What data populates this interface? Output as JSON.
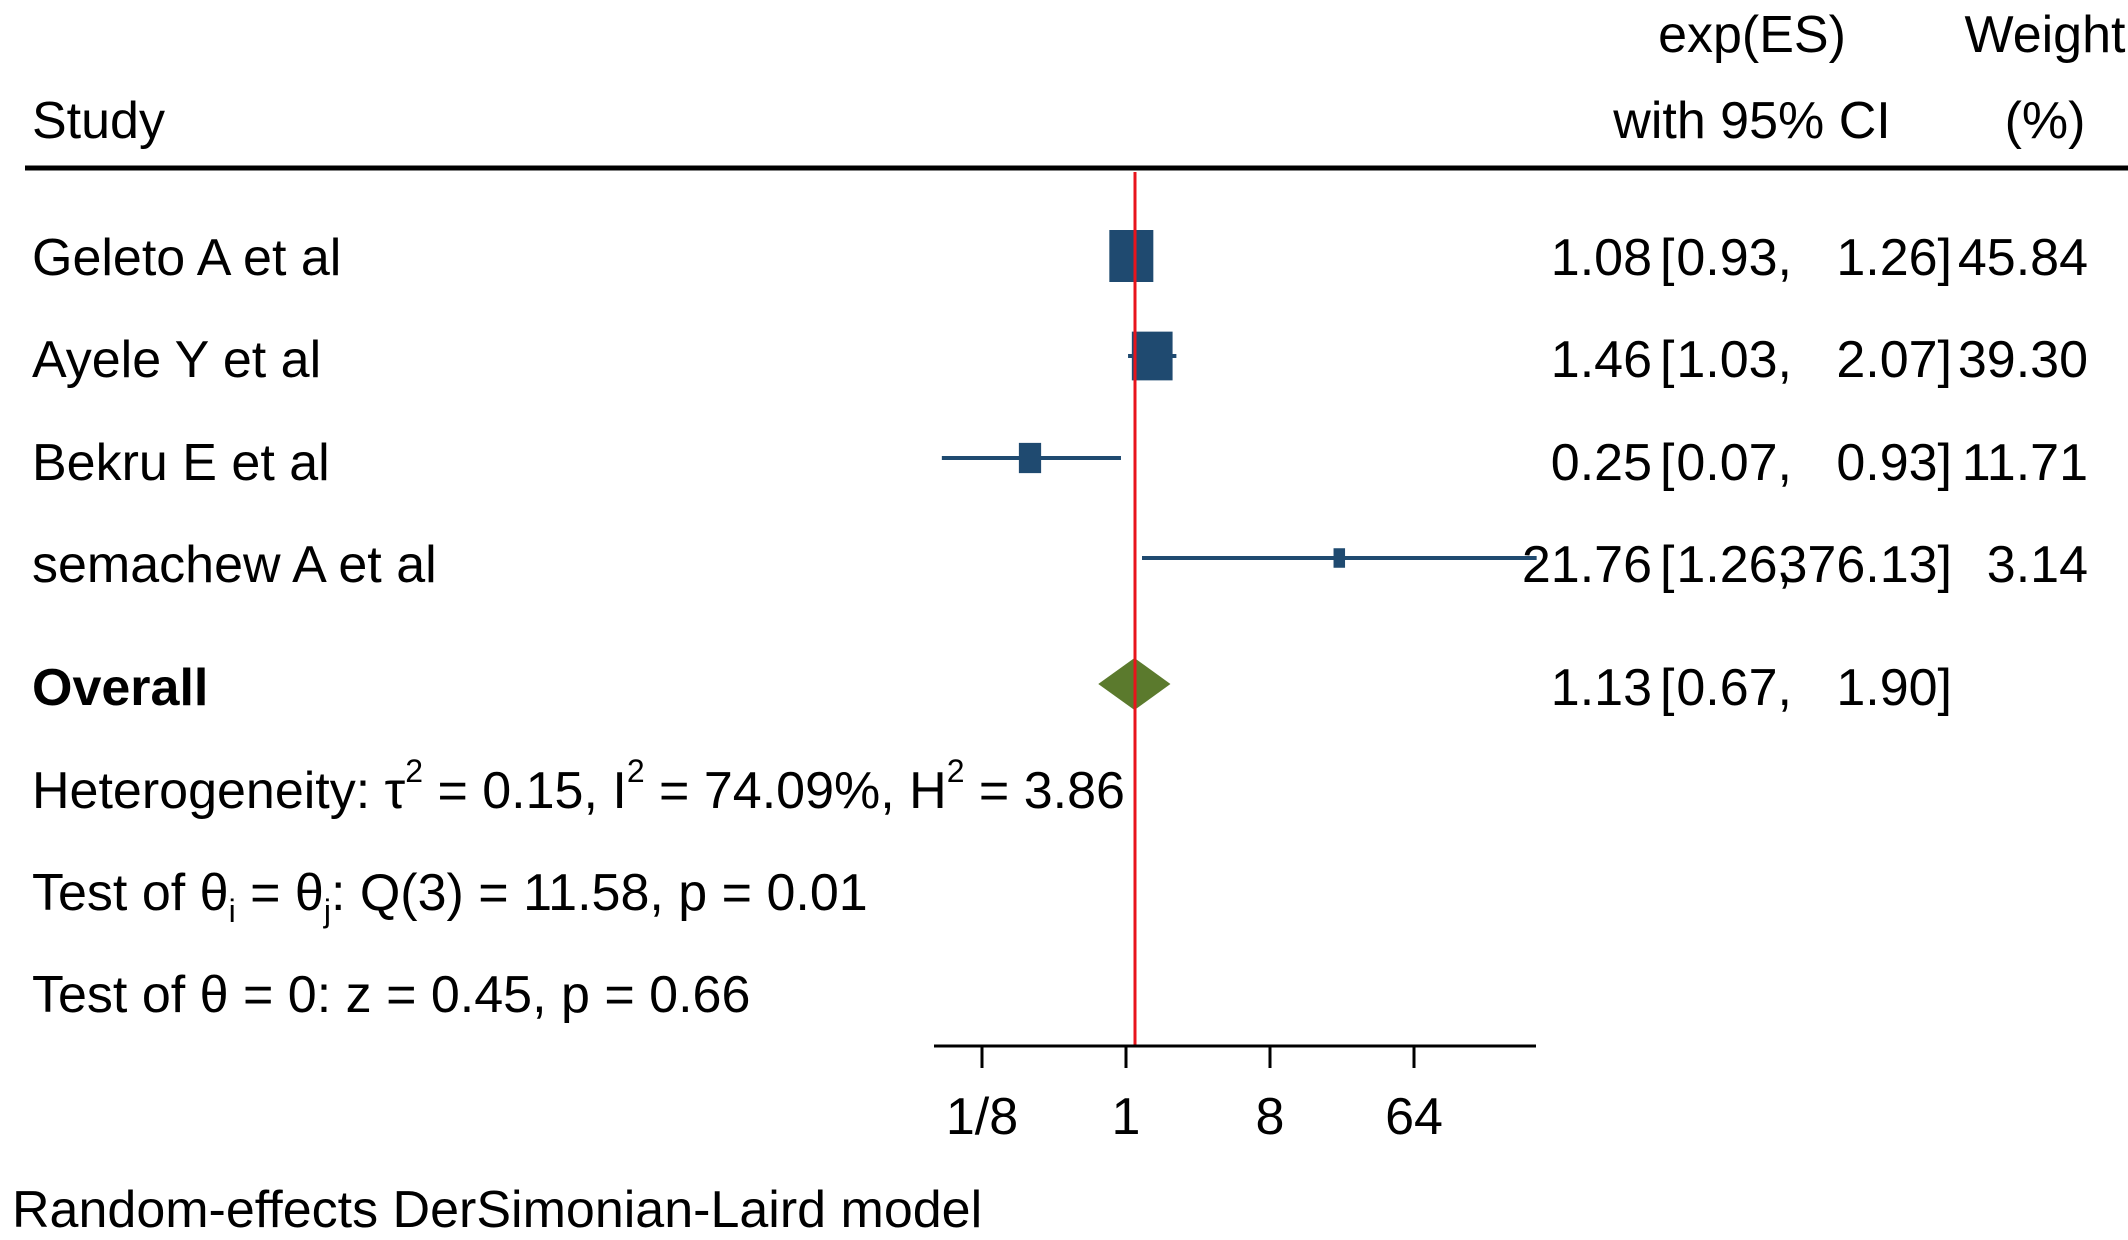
{
  "chart_data": {
    "type": "forest",
    "columns": {
      "study_label": "Study",
      "effect_label_line1": "exp(ES)",
      "effect_label_line2": "with 95% CI",
      "weight_label_line1": "Weight",
      "weight_label_line2": "(%)"
    },
    "studies": [
      {
        "name": "Geleto A et al",
        "es": 1.08,
        "lower": 0.93,
        "upper": 1.26,
        "es_text": "1.08",
        "lower_text": "0.93,",
        "upper_text": "1.26]",
        "weight": 45.84,
        "weight_text": "45.84"
      },
      {
        "name": "Ayele Y et al",
        "es": 1.46,
        "lower": 1.03,
        "upper": 2.07,
        "es_text": "1.46",
        "lower_text": "1.03,",
        "upper_text": "2.07]",
        "weight": 39.3,
        "weight_text": "39.30"
      },
      {
        "name": "Bekru E et al",
        "es": 0.25,
        "lower": 0.07,
        "upper": 0.93,
        "es_text": "0.25",
        "lower_text": "0.07,",
        "upper_text": "0.93]",
        "weight": 11.71,
        "weight_text": "11.71"
      },
      {
        "name": "semachew A et al",
        "es": 21.76,
        "lower": 1.26,
        "upper": 376.13,
        "es_text": "21.76",
        "lower_text": "1.26,",
        "upper_text": "376.13]",
        "weight": 3.14,
        "weight_text": "3.14"
      }
    ],
    "overall": {
      "name": "Overall",
      "es": 1.13,
      "lower": 0.67,
      "upper": 1.9,
      "es_text": "1.13",
      "lower_text": "0.67,",
      "upper_text": "1.90]"
    },
    "notes": {
      "heterogeneity": {
        "prefix": "Heterogeneity: ",
        "tau": "τ",
        "sq": "2",
        "p1": " = 0.15, I",
        "p2": " = 74.09%, H",
        "p3": " = 3.86"
      },
      "test_ij": {
        "prefix": "Test of θ",
        "sub_i": "i",
        "mid": " = θ",
        "sub_j": "j",
        "suffix": ": Q(3) = 11.58, p = 0.01"
      },
      "test_zero": "Test of θ = 0: z = 0.45, p = 0.66"
    },
    "x_axis": {
      "scale": "log",
      "ticks": [
        0.125,
        1,
        8,
        64
      ],
      "tick_labels": [
        "1/8",
        "1",
        "8",
        "64"
      ]
    },
    "reference_line": 1,
    "footnote": "Random-effects DerSimonian-Laird model",
    "colors": {
      "marker": "#1f4a70",
      "ci": "#1f4a70",
      "overall": "#5b7a2d",
      "reference": "#e8141c",
      "axis": "#000000"
    }
  }
}
